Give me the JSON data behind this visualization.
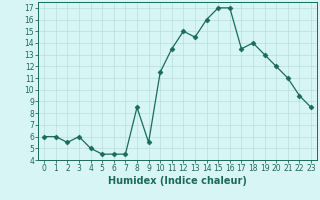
{
  "xlabel": "Humidex (Indice chaleur)",
  "ylabel": "",
  "x": [
    0,
    1,
    2,
    3,
    4,
    5,
    6,
    7,
    8,
    9,
    10,
    11,
    12,
    13,
    14,
    15,
    16,
    17,
    18,
    19,
    20,
    21,
    22,
    23
  ],
  "y": [
    6,
    6,
    5.5,
    6,
    5,
    4.5,
    4.5,
    4.5,
    8.5,
    5.5,
    11.5,
    13.5,
    15,
    14.5,
    16,
    17,
    17,
    13.5,
    14,
    13,
    12,
    11,
    9.5,
    8.5
  ],
  "line_color": "#1a6b5a",
  "marker": "D",
  "marker_size": 2.5,
  "bg_color": "#d8f5f5",
  "grid_color": "#b8dede",
  "ylim": [
    4,
    17.5
  ],
  "xlim": [
    -0.5,
    23.5
  ],
  "yticks": [
    4,
    5,
    6,
    7,
    8,
    9,
    10,
    11,
    12,
    13,
    14,
    15,
    16,
    17
  ],
  "xticks": [
    0,
    1,
    2,
    3,
    4,
    5,
    6,
    7,
    8,
    9,
    10,
    11,
    12,
    13,
    14,
    15,
    16,
    17,
    18,
    19,
    20,
    21,
    22,
    23
  ],
  "tick_fontsize": 5.5,
  "xlabel_fontsize": 7.0
}
